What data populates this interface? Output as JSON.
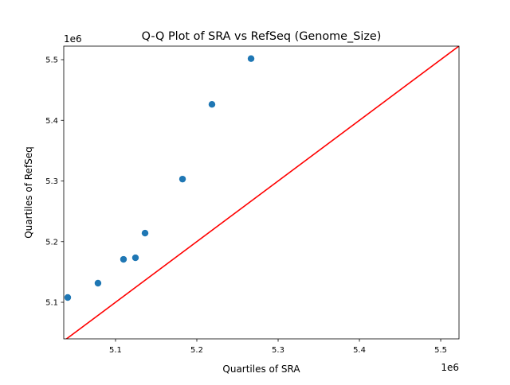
{
  "chart_data": {
    "type": "scatter",
    "title": "Q-Q Plot of SRA vs RefSeq (Genome_Size)",
    "xlabel": "Quartiles of SRA",
    "ylabel": "Quartiles of RefSeq",
    "x_offset_label": "1e6",
    "y_offset_label": "1e6",
    "xlim": [
      5036300,
      5522500
    ],
    "ylim": [
      5039700,
      5522300
    ],
    "xticks": [
      5100000,
      5200000,
      5300000,
      5400000,
      5500000
    ],
    "xtick_labels": [
      "5.1",
      "5.2",
      "5.3",
      "5.4",
      "5.5"
    ],
    "yticks": [
      5100000,
      5200000,
      5300000,
      5400000,
      5500000
    ],
    "ytick_labels": [
      "5.1",
      "5.2",
      "5.3",
      "5.4",
      "5.5"
    ],
    "grid": false,
    "points": {
      "x": [
        5041200,
        5078400,
        5109800,
        5124500,
        5136300,
        5182400,
        5218600,
        5266700
      ],
      "y": [
        5107900,
        5131500,
        5170800,
        5173400,
        5214000,
        5303100,
        5426300,
        5501700
      ],
      "color": "#1f77b4"
    },
    "reference_line": {
      "type": "y=x",
      "color": "#ff0000"
    }
  }
}
